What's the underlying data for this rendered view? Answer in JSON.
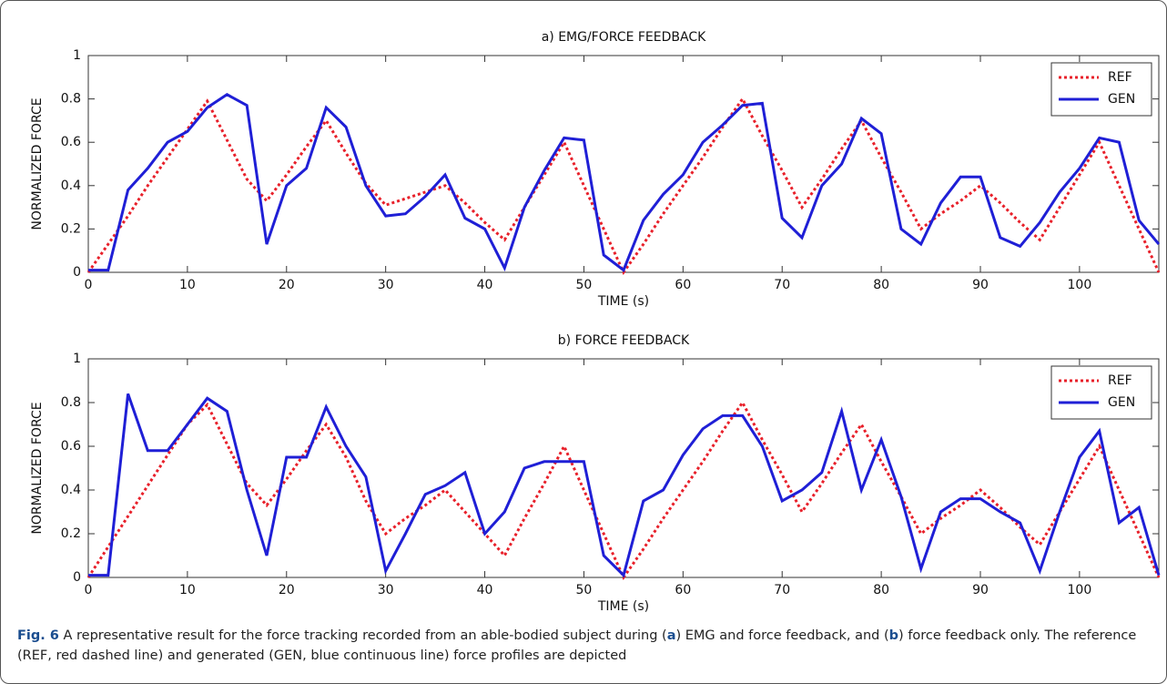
{
  "chart_data": [
    {
      "type": "line",
      "title": "a) EMG/FORCE FEEDBACK",
      "xlabel": "TIME (s)",
      "ylabel": "NORMALIZED  FORCE",
      "xlim": [
        0,
        108
      ],
      "ylim": [
        0,
        1
      ],
      "xticks": [
        0,
        10,
        20,
        30,
        40,
        50,
        60,
        70,
        80,
        90,
        100
      ],
      "yticks": [
        0,
        0.2,
        0.4,
        0.6,
        0.8,
        1
      ],
      "legend": "upper right",
      "x": [
        0,
        2,
        4,
        6,
        8,
        10,
        12,
        14,
        16,
        18,
        20,
        22,
        24,
        26,
        28,
        30,
        32,
        34,
        36,
        38,
        40,
        42,
        44,
        46,
        48,
        50,
        52,
        54,
        56,
        58,
        60,
        62,
        64,
        66,
        68,
        70,
        72,
        74,
        76,
        78,
        80,
        82,
        84,
        86,
        88,
        90,
        92,
        94,
        96,
        98,
        100,
        102,
        104,
        106,
        108
      ],
      "series": [
        {
          "name": "REF",
          "color": "#e8202a",
          "dash": true,
          "values": [
            0,
            0.13,
            0.26,
            0.4,
            0.53,
            0.66,
            0.79,
            0.61,
            0.43,
            0.33,
            0.45,
            0.58,
            0.7,
            0.55,
            0.41,
            0.31,
            0.34,
            0.37,
            0.4,
            0.32,
            0.23,
            0.15,
            0.3,
            0.45,
            0.6,
            0.4,
            0.2,
            0,
            0.13,
            0.27,
            0.4,
            0.53,
            0.67,
            0.8,
            0.63,
            0.47,
            0.3,
            0.43,
            0.57,
            0.7,
            0.53,
            0.37,
            0.2,
            0.27,
            0.33,
            0.4,
            0.32,
            0.23,
            0.15,
            0.3,
            0.45,
            0.6,
            0.4,
            0.2,
            0
          ]
        },
        {
          "name": "GEN",
          "color": "#1f1fd6",
          "dash": false,
          "values": [
            0.01,
            0.01,
            0.38,
            0.48,
            0.6,
            0.65,
            0.76,
            0.82,
            0.77,
            0.13,
            0.4,
            0.48,
            0.76,
            0.67,
            0.4,
            0.26,
            0.27,
            0.35,
            0.45,
            0.25,
            0.2,
            0.02,
            0.3,
            0.47,
            0.62,
            0.61,
            0.08,
            0.01,
            0.24,
            0.36,
            0.45,
            0.6,
            0.68,
            0.77,
            0.78,
            0.25,
            0.16,
            0.4,
            0.5,
            0.71,
            0.64,
            0.2,
            0.13,
            0.32,
            0.44,
            0.44,
            0.16,
            0.12,
            0.23,
            0.37,
            0.48,
            0.62,
            0.6,
            0.24,
            0.13
          ]
        }
      ]
    },
    {
      "type": "line",
      "title": "b) FORCE FEEDBACK",
      "xlabel": "TIME (s)",
      "ylabel": "NORMALIZED  FORCE",
      "xlim": [
        0,
        108
      ],
      "ylim": [
        0,
        1
      ],
      "xticks": [
        0,
        10,
        20,
        30,
        40,
        50,
        60,
        70,
        80,
        90,
        100
      ],
      "yticks": [
        0,
        0.2,
        0.4,
        0.6,
        0.8,
        1
      ],
      "legend": "upper right",
      "x": [
        0,
        2,
        4,
        6,
        8,
        10,
        12,
        14,
        16,
        18,
        20,
        22,
        24,
        26,
        28,
        30,
        32,
        34,
        36,
        38,
        40,
        42,
        44,
        46,
        48,
        50,
        52,
        54,
        56,
        58,
        60,
        62,
        64,
        66,
        68,
        70,
        72,
        74,
        76,
        78,
        80,
        82,
        84,
        86,
        88,
        90,
        92,
        94,
        96,
        98,
        100,
        102,
        104,
        106,
        108
      ],
      "series": [
        {
          "name": "REF",
          "color": "#e8202a",
          "dash": true,
          "values": [
            0,
            0.14,
            0.28,
            0.42,
            0.56,
            0.7,
            0.79,
            0.61,
            0.43,
            0.33,
            0.45,
            0.58,
            0.7,
            0.55,
            0.35,
            0.2,
            0.27,
            0.33,
            0.4,
            0.3,
            0.2,
            0.1,
            0.27,
            0.43,
            0.6,
            0.4,
            0.2,
            0,
            0.13,
            0.27,
            0.4,
            0.53,
            0.67,
            0.8,
            0.63,
            0.47,
            0.3,
            0.43,
            0.57,
            0.7,
            0.53,
            0.37,
            0.2,
            0.27,
            0.33,
            0.4,
            0.32,
            0.23,
            0.15,
            0.3,
            0.45,
            0.6,
            0.4,
            0.2,
            0
          ]
        },
        {
          "name": "GEN",
          "color": "#1f1fd6",
          "dash": false,
          "values": [
            0.01,
            0.01,
            0.84,
            0.58,
            0.58,
            0.7,
            0.82,
            0.76,
            0.4,
            0.1,
            0.55,
            0.55,
            0.78,
            0.6,
            0.46,
            0.03,
            0.2,
            0.38,
            0.42,
            0.48,
            0.2,
            0.3,
            0.5,
            0.53,
            0.53,
            0.53,
            0.1,
            0.01,
            0.35,
            0.4,
            0.56,
            0.68,
            0.74,
            0.74,
            0.6,
            0.35,
            0.4,
            0.48,
            0.76,
            0.4,
            0.63,
            0.37,
            0.04,
            0.3,
            0.36,
            0.36,
            0.3,
            0.25,
            0.03,
            0.3,
            0.55,
            0.67,
            0.25,
            0.32,
            0.01
          ]
        }
      ]
    }
  ],
  "caption": {
    "label": "Fig. 6",
    "parts": [
      " A representative result for the force tracking recorded from an able-bodied subject during (",
      "a",
      ") EMG and force feedback, and (",
      "b",
      ") force feedback only. The reference (REF, red dashed line) and generated (GEN, blue continuous line) force profiles are depicted"
    ]
  }
}
